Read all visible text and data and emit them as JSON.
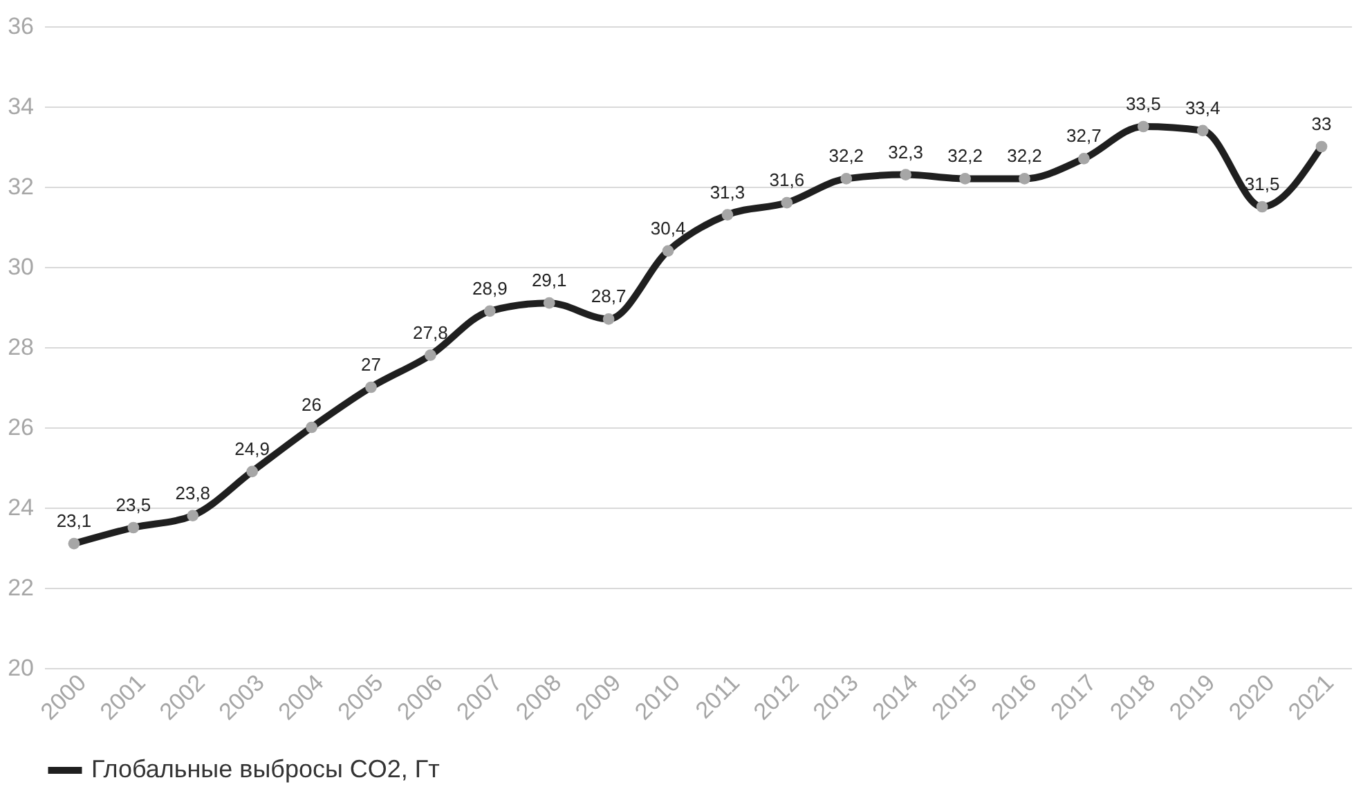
{
  "chart_data": {
    "type": "line",
    "categories": [
      "2000",
      "2001",
      "2002",
      "2003",
      "2004",
      "2005",
      "2006",
      "2007",
      "2008",
      "2009",
      "2010",
      "2011",
      "2012",
      "2013",
      "2014",
      "2015",
      "2016",
      "2017",
      "2018",
      "2019",
      "2020",
      "2021"
    ],
    "series": [
      {
        "name": "Глобальные выбросы CO2, Гт",
        "color": "#1f1f1f",
        "values": [
          23.1,
          23.5,
          23.8,
          24.9,
          26,
          27,
          27.8,
          28.9,
          29.1,
          28.7,
          30.4,
          31.3,
          31.6,
          32.2,
          32.3,
          32.2,
          32.2,
          32.7,
          33.5,
          33.4,
          31.5,
          33
        ],
        "value_labels": [
          "23,1",
          "23,5",
          "23,8",
          "24,9",
          "26",
          "27",
          "27,8",
          "28,9",
          "29,1",
          "28,7",
          "30,4",
          "31,3",
          "31,6",
          "32,2",
          "32,3",
          "32,2",
          "32,2",
          "32,7",
          "33,5",
          "33,4",
          "31,5",
          "33"
        ]
      }
    ],
    "ylim": [
      20,
      36
    ],
    "yticks": [
      20,
      22,
      24,
      26,
      28,
      30,
      32,
      34,
      36
    ],
    "grid": "y",
    "legend": "bottom",
    "marker": "circle",
    "line_style": "solid"
  }
}
